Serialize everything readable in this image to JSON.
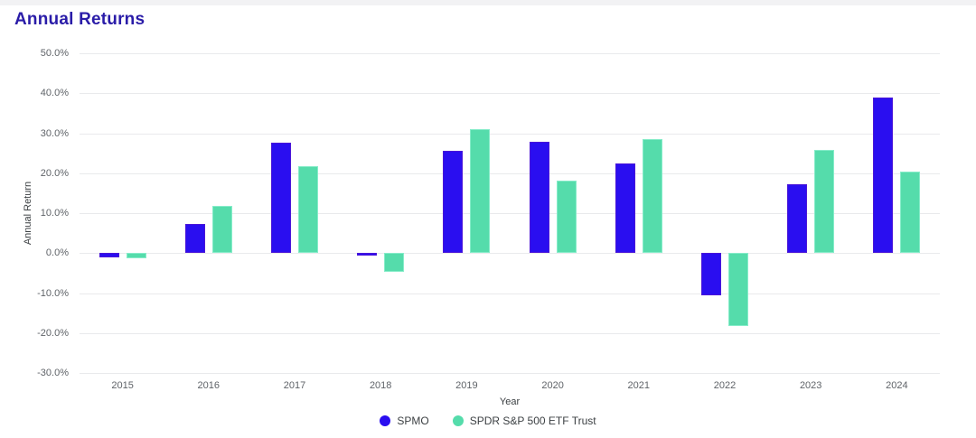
{
  "card": {
    "title": "Annual Returns"
  },
  "colors": {
    "title": "#2a1ca8",
    "background": "#ffffff",
    "top_edge": "#f2f2f4",
    "grid": "#e9eaec",
    "tick_label": "#5f6368",
    "axis_title": "#3c4043",
    "spmo": "#2a0ef0",
    "spdr": "#55dcab"
  },
  "chart_data": {
    "type": "bar",
    "title": "Annual Returns",
    "xlabel": "Year",
    "ylabel": "Annual Return",
    "categories": [
      "2015",
      "2016",
      "2017",
      "2018",
      "2019",
      "2020",
      "2021",
      "2022",
      "2023",
      "2024"
    ],
    "series": [
      {
        "name": "SPMO",
        "color": "#2a0ef0",
        "values": [
          -1.0,
          7.3,
          27.6,
          -0.7,
          25.7,
          27.9,
          22.4,
          -10.5,
          17.2,
          39.0
        ]
      },
      {
        "name": "SPDR S&P 500 ETF Trust",
        "color": "#55dcab",
        "values": [
          -1.2,
          11.9,
          21.7,
          -4.7,
          31.1,
          18.2,
          28.5,
          -18.2,
          25.9,
          20.5
        ]
      }
    ],
    "ylim": [
      -30,
      50
    ],
    "yticks": [
      50,
      40,
      30,
      20,
      10,
      0,
      -10,
      -20,
      -30
    ],
    "ytick_labels": [
      "50.0%",
      "40.0%",
      "30.0%",
      "20.0%",
      "10.0%",
      "0.0%",
      "-10.0%",
      "-20.0%",
      "-30.0%"
    ],
    "grid": true,
    "legend_position": "bottom"
  }
}
